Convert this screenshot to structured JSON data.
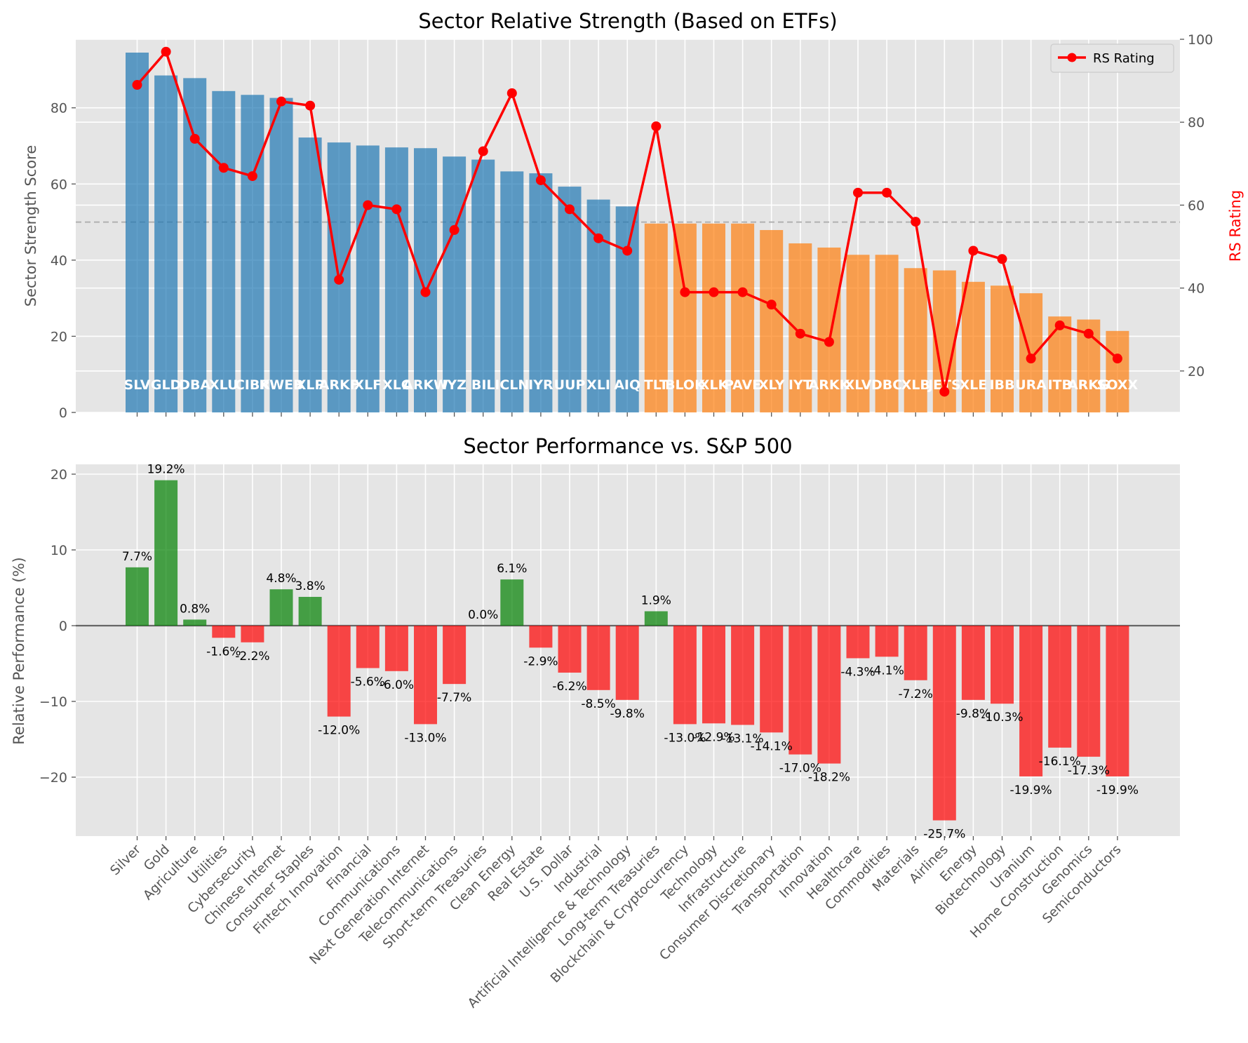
{
  "chart_data": [
    {
      "type": "bar",
      "title": "Sector Relative Strength (Based on ETFs)",
      "ylabel": "Sector Strength Score",
      "y2label": "RS Rating",
      "ylim": [
        0,
        98
      ],
      "y2lim": [
        10,
        100
      ],
      "yticks": [
        0,
        20,
        40,
        60,
        80
      ],
      "y2ticks": [
        20,
        40,
        60,
        80,
        100
      ],
      "reference_line": 50,
      "grid": true,
      "legend_position": "upper right",
      "legend": [
        "RS Rating"
      ],
      "colors": {
        "above": "#1f77b4",
        "below": "#ff7f0e",
        "line": "#ff0000",
        "bg": "#e5e5e5",
        "y2label": "#ff0000"
      },
      "categories": [
        "SLV",
        "GLD",
        "DBA",
        "XLU",
        "CIBR",
        "KWEB",
        "XLP",
        "ARKF",
        "XLF",
        "XLC",
        "ARKW",
        "IYZ",
        "BIL",
        "ICLN",
        "IYR",
        "UUP",
        "XLI",
        "AIQ",
        "TLT",
        "BLOK",
        "XLK",
        "PAVE",
        "XLY",
        "IYT",
        "ARKK",
        "XLV",
        "DBC",
        "XLB",
        "JETS",
        "XLE",
        "IBB",
        "URA",
        "ITB",
        "ARKG",
        "SOXX"
      ],
      "series": [
        {
          "name": "Sector Strength Score",
          "values": [
            94.5,
            88.5,
            87.8,
            84.4,
            83.4,
            82.6,
            72.2,
            70.9,
            70.1,
            69.6,
            69.4,
            67.2,
            66.4,
            63.3,
            62.8,
            59.3,
            55.9,
            54.1,
            49.6,
            49.6,
            49.6,
            49.6,
            47.9,
            44.4,
            43.3,
            41.4,
            41.4,
            37.9,
            37.3,
            34.3,
            33.3,
            31.3,
            25.2,
            24.4,
            21.4
          ]
        },
        {
          "name": "RS Rating",
          "values": [
            89,
            97,
            76,
            69,
            67,
            85,
            84,
            42,
            60,
            59,
            39,
            54,
            73,
            87,
            66,
            59,
            52,
            49,
            79,
            39,
            39,
            39,
            36,
            29,
            27,
            63,
            63,
            56,
            15,
            49,
            47,
            23,
            31,
            29,
            23
          ]
        }
      ]
    },
    {
      "type": "bar",
      "title": "Sector Performance vs. S&P 500",
      "ylabel": "Relative Performance (%)",
      "ylim": [
        -28,
        21
      ],
      "yticks": [
        -20,
        -10,
        0,
        10,
        20
      ],
      "grid": true,
      "zero_line": true,
      "colors": {
        "positive": "#008000",
        "negative": "#ff0000",
        "bg": "#e5e5e5"
      },
      "categories": [
        "Silver",
        "Gold",
        "Agriculture",
        "Utilities",
        "Cybersecurity",
        "Chinese Internet",
        "Consumer Staples",
        "Fintech Innovation",
        "Financial",
        "Communications",
        "Next Generation Internet",
        "Telecommunications",
        "Short-term Treasuries",
        "Clean Energy",
        "Real Estate",
        "U.S. Dollar",
        "Industrial",
        "Artificial Intelligence & Technology",
        "Long-term Treasuries",
        "Blockchain & Cryptocurrency",
        "Technology",
        "Infrastructure",
        "Consumer Discretionary",
        "Transportation",
        "Innovation",
        "Healthcare",
        "Commodities",
        "Materials",
        "Airlines",
        "Energy",
        "Biotechnology",
        "Uranium",
        "Home Construction",
        "Genomics",
        "Semiconductors"
      ],
      "values": [
        7.7,
        19.2,
        0.8,
        -1.6,
        -2.2,
        4.8,
        3.8,
        -12.0,
        -5.6,
        -6.0,
        -13.0,
        -7.7,
        0.0,
        6.1,
        -2.9,
        -6.2,
        -8.5,
        -9.8,
        1.9,
        -13.0,
        -12.9,
        -13.1,
        -14.1,
        -17.0,
        -18.2,
        -4.3,
        -4.1,
        -7.2,
        -25.7,
        -9.8,
        -10.3,
        -19.9,
        -16.1,
        -17.3,
        -19.9
      ],
      "value_labels": [
        "7.7%",
        "19.2%",
        "0.8%",
        "-1.6%",
        "-2.2%",
        "4.8%",
        "3.8%",
        "-12.0%",
        "-5.6%",
        "-6.0%",
        "-13.0%",
        "-7.7%",
        "0.0%",
        "6.1%",
        "-2.9%",
        "-6.2%",
        "-8.5%",
        "-9.8%",
        "1.9%",
        "-13.0%",
        "-12.9%",
        "-13.1%",
        "-14.1%",
        "-17.0%",
        "-18.2%",
        "-4.3%",
        "-4.1%",
        "-7.2%",
        "-25.7%",
        "-9.8%",
        "-10.3%",
        "-19.9%",
        "-16.1%",
        "-17.3%",
        "-19.9%"
      ]
    }
  ]
}
